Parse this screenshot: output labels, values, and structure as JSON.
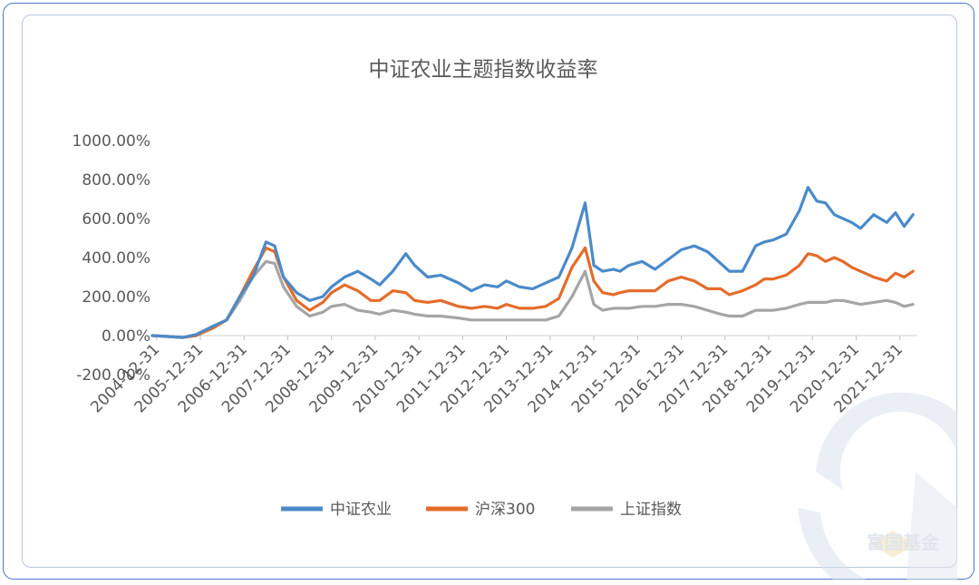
{
  "chart_data": {
    "type": "line",
    "title": "中证农业主题指数收益率",
    "xlabel": "",
    "ylabel": "",
    "ylim": [
      -200,
      1000
    ],
    "y_ticks": [
      "1000.00%",
      "800.00%",
      "600.00%",
      "400.00%",
      "200.00%",
      "0.00%",
      "-200.00%"
    ],
    "y_tick_values": [
      1000,
      800,
      600,
      400,
      200,
      0,
      -200
    ],
    "x_tick_labels": [
      "2004-12-31",
      "2005-12-31",
      "2006-12-31",
      "2007-12-31",
      "2008-12-31",
      "2009-12-31",
      "2010-12-31",
      "2011-12-31",
      "2012-12-31",
      "2013-12-31",
      "2014-12-31",
      "2015-12-31",
      "2016-12-31",
      "2017-12-31",
      "2018-12-31",
      "2019-12-31",
      "2020-12-31",
      "2021-12-31"
    ],
    "x_range": [
      2004.9,
      2022.4
    ],
    "legend_position": "bottom",
    "grid": false,
    "x": [
      2004.9,
      2005.3,
      2005.6,
      2005.9,
      2006.3,
      2006.6,
      2006.9,
      2007.2,
      2007.5,
      2007.7,
      2007.9,
      2008.2,
      2008.5,
      2008.8,
      2009.0,
      2009.3,
      2009.6,
      2009.9,
      2010.1,
      2010.4,
      2010.7,
      2010.9,
      2011.2,
      2011.5,
      2011.9,
      2012.2,
      2012.5,
      2012.8,
      2013.0,
      2013.3,
      2013.6,
      2013.9,
      2014.2,
      2014.5,
      2014.8,
      2015.0,
      2015.2,
      2015.45,
      2015.6,
      2015.8,
      2016.1,
      2016.4,
      2016.7,
      2017.0,
      2017.3,
      2017.6,
      2017.9,
      2018.1,
      2018.4,
      2018.7,
      2018.9,
      2019.1,
      2019.4,
      2019.7,
      2019.9,
      2020.1,
      2020.3,
      2020.5,
      2020.7,
      2020.9,
      2021.1,
      2021.4,
      2021.7,
      2021.9,
      2022.1,
      2022.3
    ],
    "series": [
      {
        "name": "中证农业",
        "color": "#4a8ac9",
        "values": [
          0,
          -5,
          -10,
          5,
          50,
          80,
          200,
          300,
          480,
          460,
          300,
          220,
          180,
          200,
          250,
          300,
          330,
          290,
          260,
          330,
          420,
          360,
          300,
          310,
          270,
          230,
          260,
          250,
          280,
          250,
          240,
          270,
          300,
          450,
          680,
          360,
          330,
          340,
          330,
          360,
          380,
          340,
          390,
          440,
          460,
          430,
          370,
          330,
          330,
          460,
          480,
          490,
          520,
          640,
          760,
          690,
          680,
          620,
          600,
          580,
          550,
          620,
          580,
          630,
          560,
          620
        ]
      },
      {
        "name": "沪深300",
        "color": "#e46c2a",
        "values": [
          0,
          -5,
          -10,
          0,
          40,
          80,
          200,
          330,
          450,
          430,
          300,
          180,
          130,
          170,
          220,
          260,
          230,
          180,
          180,
          230,
          220,
          180,
          170,
          180,
          150,
          140,
          150,
          140,
          160,
          140,
          140,
          150,
          190,
          350,
          450,
          280,
          220,
          210,
          220,
          230,
          230,
          230,
          280,
          300,
          280,
          240,
          240,
          210,
          230,
          260,
          290,
          290,
          310,
          360,
          420,
          410,
          380,
          400,
          380,
          350,
          330,
          300,
          280,
          320,
          300,
          330
        ]
      },
      {
        "name": "上证指数",
        "color": "#a5a5a5",
        "values": [
          0,
          -5,
          -10,
          0,
          40,
          80,
          180,
          300,
          380,
          370,
          250,
          150,
          100,
          120,
          150,
          160,
          130,
          120,
          110,
          130,
          120,
          110,
          100,
          100,
          90,
          80,
          80,
          80,
          80,
          80,
          80,
          80,
          100,
          200,
          330,
          160,
          130,
          140,
          140,
          140,
          150,
          150,
          160,
          160,
          150,
          130,
          110,
          100,
          100,
          130,
          130,
          130,
          140,
          160,
          170,
          170,
          170,
          180,
          180,
          170,
          160,
          170,
          180,
          170,
          150,
          160
        ]
      }
    ],
    "watermark": "富国基金"
  }
}
